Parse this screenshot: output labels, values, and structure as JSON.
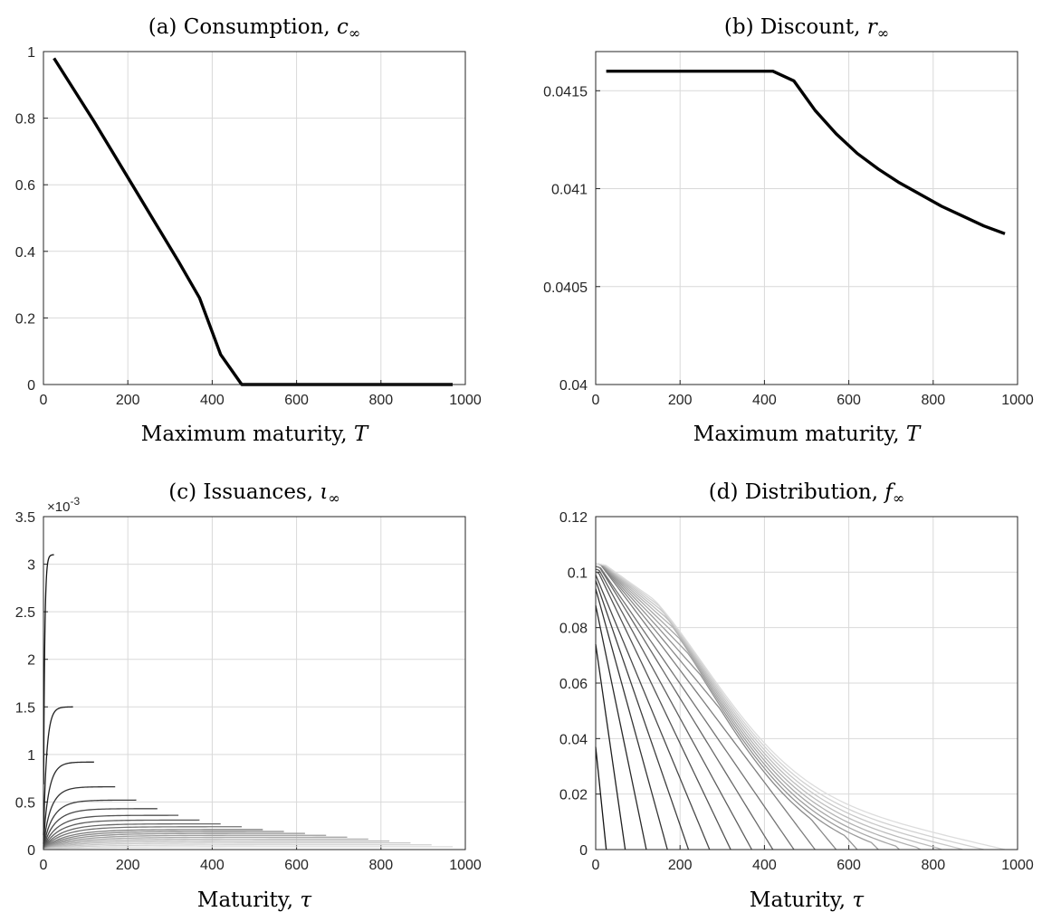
{
  "chart_data": [
    {
      "id": "a",
      "type": "line",
      "title_prefix": "(a) Consumption, ",
      "title_symbol": "c",
      "title_subscript": "∞",
      "xlabel_text": "Maximum maturity, ",
      "xlabel_symbol": "T",
      "xlim": [
        0,
        1000
      ],
      "ylim": [
        0,
        1
      ],
      "xticks": [
        0,
        200,
        400,
        600,
        800,
        1000
      ],
      "yticks": [
        0,
        0.2,
        0.4,
        0.6,
        0.8,
        1
      ],
      "xtick_labels": [
        "0",
        "200",
        "400",
        "600",
        "800",
        "1000"
      ],
      "ytick_labels": [
        "0",
        "0.2",
        "0.4",
        "0.6",
        "0.8",
        "1"
      ],
      "grid": true,
      "series": [
        {
          "color": "#000000",
          "x": [
            25,
            70,
            120,
            170,
            220,
            270,
            320,
            370,
            420,
            470,
            520,
            570,
            620,
            670,
            720,
            770,
            820,
            870,
            920,
            970
          ],
          "y": [
            0.98,
            0.89,
            0.79,
            0.685,
            0.58,
            0.475,
            0.37,
            0.26,
            0.09,
            0.0,
            0.0,
            0.0,
            0.0,
            0.0,
            0.0,
            0.0,
            0.0,
            0.0,
            0.0,
            0.0
          ]
        }
      ]
    },
    {
      "id": "b",
      "type": "line",
      "title_prefix": "(b) Discount, ",
      "title_symbol": "r",
      "title_subscript": "∞",
      "xlabel_text": "Maximum maturity, ",
      "xlabel_symbol": "T",
      "xlim": [
        0,
        1000
      ],
      "ylim": [
        0.04,
        0.0417
      ],
      "xticks": [
        0,
        200,
        400,
        600,
        800,
        1000
      ],
      "yticks": [
        0.04,
        0.0405,
        0.041,
        0.0415
      ],
      "xtick_labels": [
        "0",
        "200",
        "400",
        "600",
        "800",
        "1000"
      ],
      "ytick_labels": [
        "0.04",
        "0.0405",
        "0.041",
        "0.0415"
      ],
      "grid": true,
      "series": [
        {
          "color": "#000000",
          "x": [
            25,
            70,
            120,
            170,
            220,
            270,
            320,
            370,
            420,
            470,
            520,
            570,
            620,
            670,
            720,
            770,
            820,
            870,
            920,
            970
          ],
          "y": [
            0.0416,
            0.0416,
            0.0416,
            0.0416,
            0.0416,
            0.0416,
            0.0416,
            0.0416,
            0.0416,
            0.04155,
            0.0414,
            0.04128,
            0.04118,
            0.0411,
            0.04103,
            0.04097,
            0.04091,
            0.04086,
            0.04081,
            0.04077
          ]
        }
      ]
    },
    {
      "id": "c",
      "type": "line",
      "title_prefix": "(c) Issuances, ",
      "title_symbol": "ι",
      "title_subscript": "∞",
      "xlabel_text": "Maturity, ",
      "xlabel_symbol": "τ",
      "exponent_label": "×10",
      "exponent_power": "-3",
      "xlim": [
        0,
        1000
      ],
      "ylim": [
        0,
        3.5
      ],
      "xticks": [
        0,
        200,
        400,
        600,
        800,
        1000
      ],
      "yticks": [
        0,
        0.5,
        1,
        1.5,
        2,
        2.5,
        3,
        3.5
      ],
      "xtick_labels": [
        "0",
        "200",
        "400",
        "600",
        "800",
        "1000"
      ],
      "ytick_labels": [
        "0",
        "0.5",
        "1",
        "1.5",
        "2",
        "2.5",
        "3",
        "3.5"
      ],
      "grid": true,
      "family": {
        "description_free": true,
        "T": [
          25,
          70,
          120,
          170,
          220,
          270,
          320,
          370,
          420,
          470,
          520,
          570,
          620,
          670,
          720,
          770,
          820,
          870,
          920,
          970
        ],
        "plateau": [
          3.1,
          1.5,
          0.92,
          0.66,
          0.52,
          0.43,
          0.36,
          0.31,
          0.27,
          0.24,
          0.21,
          0.19,
          0.17,
          0.15,
          0.13,
          0.11,
          0.09,
          0.07,
          0.05,
          0.03
        ]
      }
    },
    {
      "id": "d",
      "type": "line",
      "title_prefix": "(d) Distribution, ",
      "title_symbol": "f",
      "title_subscript": "∞",
      "xlabel_text": "Maturity, ",
      "xlabel_symbol": "τ",
      "xlim": [
        0,
        1000
      ],
      "ylim": [
        0,
        0.12
      ],
      "xticks": [
        0,
        200,
        400,
        600,
        800,
        1000
      ],
      "yticks": [
        0,
        0.02,
        0.04,
        0.06,
        0.08,
        0.1,
        0.12
      ],
      "xtick_labels": [
        "0",
        "200",
        "400",
        "600",
        "800",
        "1000"
      ],
      "ytick_labels": [
        "0",
        "0.02",
        "0.04",
        "0.06",
        "0.08",
        "0.1",
        "0.12"
      ],
      "grid": true,
      "family": {
        "T": [
          25,
          70,
          120,
          170,
          220,
          270,
          320,
          370,
          420,
          470,
          520,
          570,
          620,
          670,
          720,
          770,
          820,
          870,
          920,
          970
        ],
        "peak": [
          0.037,
          0.074,
          0.088,
          0.094,
          0.097,
          0.099,
          0.1,
          0.101,
          0.102,
          0.102,
          0.103,
          0.103,
          0.103,
          0.103,
          0.103,
          0.103,
          0.103,
          0.103,
          0.103,
          0.103
        ]
      }
    }
  ]
}
